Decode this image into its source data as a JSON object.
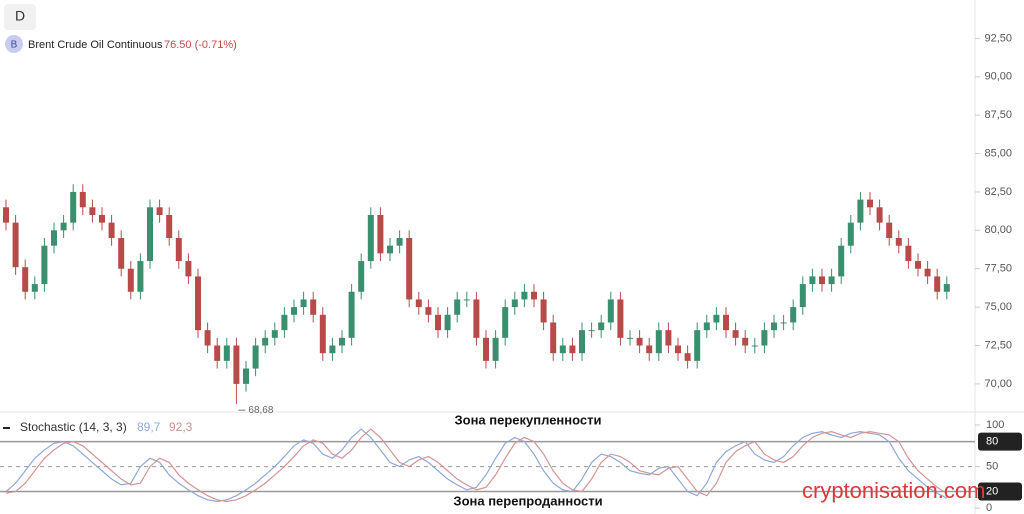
{
  "interval": "D",
  "symbol_icon": "B",
  "watermark": "cryptonisation.com",
  "chart_data": [
    {
      "type": "candlestick",
      "title": "Brent Crude Oil Continuous",
      "price_label": "76.50 (-0.71%)",
      "up_color": "#3b8e6e",
      "down_color": "#b84a4a",
      "grid": false,
      "ylim": [
        68.3,
        95
      ],
      "yticks": [
        {
          "value": 70,
          "label": "70,00"
        },
        {
          "value": 72.5,
          "label": "72,50"
        },
        {
          "value": 75,
          "label": "75,00"
        },
        {
          "value": 77.5,
          "label": "77,50"
        },
        {
          "value": 80,
          "label": "80,00"
        },
        {
          "value": 82.5,
          "label": "82,50"
        },
        {
          "value": 85,
          "label": "85,00"
        },
        {
          "value": 87.5,
          "label": "87,50"
        },
        {
          "value": 90,
          "label": "90,00"
        },
        {
          "value": 92.5,
          "label": "92,50"
        }
      ],
      "annotation": {
        "value": 68.68,
        "label": "68,68"
      },
      "open": [
        81.5,
        80.5,
        77.6,
        76,
        76.5,
        79,
        80,
        80.5,
        82.5,
        81.5,
        81,
        80.5,
        79.5,
        77.5,
        76,
        78,
        81.5,
        81,
        79.5,
        78,
        77,
        73.5,
        72.5,
        71.5,
        72.5,
        70,
        71,
        72.5,
        73,
        73.5,
        74.5,
        75,
        75.5,
        74.5,
        72,
        72.5,
        73,
        76,
        78,
        81,
        78.5,
        79,
        79.5,
        75.5,
        75,
        74.5,
        73.5,
        74.5,
        75.5,
        75.5,
        73,
        71.5,
        73,
        75,
        75.5,
        76,
        75.5,
        74,
        72,
        72.5,
        72,
        73.5,
        73.5,
        74,
        75.5,
        73,
        73,
        72.5,
        72,
        73.5,
        72.5,
        72,
        71.5,
        73.5,
        74,
        74.5,
        73.5,
        73,
        72.5,
        72.5,
        73.5,
        74,
        74,
        75,
        76.5,
        77,
        76.5,
        77,
        79,
        80.5,
        82,
        81.5,
        80.5,
        79.5,
        79,
        78,
        77.5,
        77,
        76
      ],
      "high": [
        82,
        81,
        78.1,
        77,
        79.5,
        80.5,
        81,
        83,
        83,
        82,
        81.5,
        81,
        80,
        78,
        78.5,
        82,
        82,
        81.5,
        80,
        78.5,
        77.5,
        74,
        73,
        73,
        73,
        71.5,
        73,
        73.5,
        74,
        75,
        75.5,
        76,
        76,
        75,
        73,
        73.5,
        76.5,
        78.5,
        81.5,
        81.5,
        79.5,
        80,
        80,
        76,
        75.5,
        75,
        75,
        76,
        76,
        76,
        73.5,
        73.5,
        75.5,
        76,
        76.5,
        76.5,
        76,
        74.5,
        73,
        73,
        74,
        74,
        74.5,
        76,
        76,
        73.5,
        73.5,
        73,
        74,
        74,
        73,
        72.5,
        74,
        74.5,
        75,
        75,
        74,
        73.5,
        73,
        74,
        74.5,
        74.5,
        75.5,
        77,
        77.5,
        77.5,
        77.5,
        79.5,
        81,
        82.5,
        82.5,
        82,
        81,
        80,
        79.5,
        78.5,
        78,
        77.5,
        77
      ],
      "low": [
        80,
        77.1,
        75.5,
        75.5,
        76,
        78.5,
        79.5,
        80,
        81,
        80.5,
        80,
        79,
        77,
        75.5,
        75.5,
        77.5,
        80.5,
        79,
        77.5,
        76.5,
        73,
        72,
        71,
        71,
        68.68,
        69.5,
        70.5,
        72,
        72.5,
        73,
        74,
        74.5,
        74,
        71.5,
        71.5,
        72,
        72.5,
        75.5,
        77.5,
        78,
        78,
        78.5,
        75,
        74.5,
        74,
        73,
        73,
        74,
        75,
        72.5,
        71,
        71,
        72.5,
        74.5,
        75,
        75,
        73.5,
        71.5,
        71.5,
        71.5,
        71.5,
        73,
        73,
        73.5,
        72.5,
        72.5,
        72,
        71.5,
        71.5,
        72,
        71.5,
        71,
        71,
        73,
        73.5,
        73,
        72.5,
        72,
        72,
        72,
        73,
        73.5,
        73.5,
        74.5,
        76,
        76,
        76,
        76.5,
        78.5,
        80,
        81,
        80,
        79,
        78.5,
        77.5,
        77,
        76.5,
        75.5,
        75.5
      ],
      "close": [
        80.5,
        77.6,
        76,
        76.5,
        79,
        80,
        80.5,
        82.5,
        81.5,
        81,
        80.5,
        79.5,
        77.5,
        76,
        78,
        81.5,
        81,
        79.5,
        78,
        77,
        73.5,
        72.5,
        71.5,
        72.5,
        70,
        71,
        72.5,
        73,
        73.5,
        74.5,
        75,
        75.5,
        74.5,
        72,
        72.5,
        73,
        76,
        78,
        81,
        78.5,
        79,
        79.5,
        75.5,
        75,
        74.5,
        73.5,
        74.5,
        75.5,
        75.5,
        73,
        71.5,
        73,
        75,
        75.5,
        76,
        75.5,
        74,
        72,
        72.5,
        72,
        73.5,
        73.5,
        74,
        75.5,
        73,
        73,
        72.5,
        72,
        73.5,
        72.5,
        72,
        71.5,
        73.5,
        74,
        74.5,
        73.5,
        73,
        72.5,
        72.5,
        73.5,
        74,
        74,
        75,
        76.5,
        77,
        76.5,
        77,
        79,
        80.5,
        82,
        81.5,
        80.5,
        79.5,
        79,
        78,
        77.5,
        77,
        76,
        76.5
      ]
    },
    {
      "type": "line",
      "title": "Stochastic (14, 3, 3)",
      "ylim": [
        -7,
        112
      ],
      "yticks": [
        0,
        50,
        100
      ],
      "levels": [
        80,
        20
      ],
      "midline": 50,
      "level_color": "#999",
      "top_note": "Зона перекупленности",
      "bottom_note": "Зона перепроданности",
      "series": [
        {
          "name": "89,7",
          "color": "#8fa8d8",
          "values": [
            20,
            30,
            45,
            60,
            70,
            78,
            80,
            75,
            65,
            55,
            45,
            35,
            28,
            30,
            50,
            60,
            55,
            40,
            30,
            22,
            15,
            10,
            8,
            10,
            15,
            22,
            30,
            40,
            50,
            62,
            75,
            82,
            78,
            65,
            60,
            70,
            85,
            95,
            85,
            70,
            55,
            50,
            58,
            62,
            55,
            45,
            35,
            28,
            22,
            25,
            40,
            60,
            78,
            85,
            80,
            65,
            45,
            30,
            22,
            20,
            35,
            55,
            65,
            62,
            55,
            45,
            42,
            40,
            48,
            50,
            35,
            20,
            15,
            30,
            55,
            68,
            75,
            80,
            65,
            58,
            55,
            62,
            75,
            85,
            90,
            92,
            88,
            85,
            90,
            92,
            90,
            88,
            80,
            60,
            45,
            35,
            25,
            18,
            12
          ]
        },
        {
          "name": "92,3",
          "color": "#d49494",
          "values": [
            18,
            20,
            30,
            45,
            60,
            70,
            78,
            80,
            75,
            65,
            55,
            45,
            35,
            28,
            30,
            50,
            60,
            55,
            40,
            30,
            22,
            15,
            10,
            8,
            10,
            15,
            22,
            30,
            40,
            50,
            62,
            75,
            82,
            78,
            65,
            60,
            70,
            85,
            95,
            85,
            70,
            55,
            50,
            58,
            62,
            55,
            45,
            35,
            28,
            22,
            25,
            40,
            60,
            78,
            85,
            80,
            65,
            45,
            30,
            22,
            20,
            35,
            55,
            65,
            62,
            55,
            45,
            42,
            40,
            48,
            50,
            35,
            20,
            15,
            30,
            55,
            68,
            75,
            80,
            65,
            58,
            55,
            62,
            75,
            85,
            90,
            92,
            88,
            85,
            90,
            92,
            90,
            88,
            80,
            60,
            45,
            35,
            25,
            18
          ]
        }
      ]
    }
  ]
}
